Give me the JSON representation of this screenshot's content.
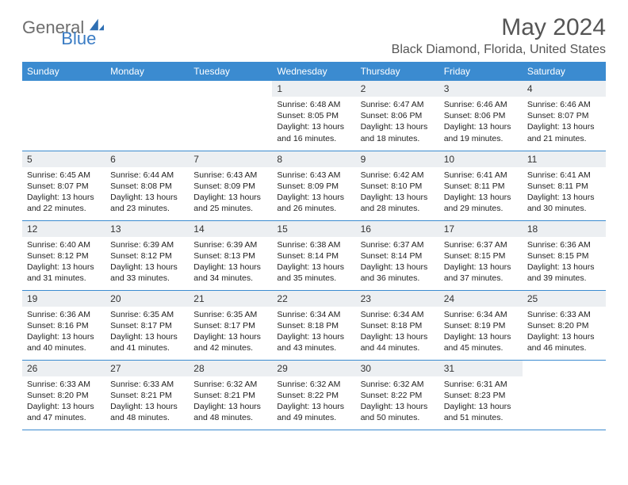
{
  "brand": {
    "general": "General",
    "blue": "Blue"
  },
  "title": "May 2024",
  "location": "Black Diamond, Florida, United States",
  "theme": {
    "header_bg": "#3b8bd0",
    "header_fg": "#ffffff",
    "daynum_bg": "#eceff2",
    "row_border": "#3b8bd0",
    "page_bg": "#ffffff",
    "title_color": "#555555",
    "logo_gray": "#6e6e6e",
    "logo_blue": "#3a7cc4"
  },
  "day_headers": [
    "Sunday",
    "Monday",
    "Tuesday",
    "Wednesday",
    "Thursday",
    "Friday",
    "Saturday"
  ],
  "weeks": [
    [
      null,
      null,
      null,
      {
        "n": "1",
        "sr": "6:48 AM",
        "ss": "8:05 PM",
        "dl": "13 hours and 16 minutes."
      },
      {
        "n": "2",
        "sr": "6:47 AM",
        "ss": "8:06 PM",
        "dl": "13 hours and 18 minutes."
      },
      {
        "n": "3",
        "sr": "6:46 AM",
        "ss": "8:06 PM",
        "dl": "13 hours and 19 minutes."
      },
      {
        "n": "4",
        "sr": "6:46 AM",
        "ss": "8:07 PM",
        "dl": "13 hours and 21 minutes."
      }
    ],
    [
      {
        "n": "5",
        "sr": "6:45 AM",
        "ss": "8:07 PM",
        "dl": "13 hours and 22 minutes."
      },
      {
        "n": "6",
        "sr": "6:44 AM",
        "ss": "8:08 PM",
        "dl": "13 hours and 23 minutes."
      },
      {
        "n": "7",
        "sr": "6:43 AM",
        "ss": "8:09 PM",
        "dl": "13 hours and 25 minutes."
      },
      {
        "n": "8",
        "sr": "6:43 AM",
        "ss": "8:09 PM",
        "dl": "13 hours and 26 minutes."
      },
      {
        "n": "9",
        "sr": "6:42 AM",
        "ss": "8:10 PM",
        "dl": "13 hours and 28 minutes."
      },
      {
        "n": "10",
        "sr": "6:41 AM",
        "ss": "8:11 PM",
        "dl": "13 hours and 29 minutes."
      },
      {
        "n": "11",
        "sr": "6:41 AM",
        "ss": "8:11 PM",
        "dl": "13 hours and 30 minutes."
      }
    ],
    [
      {
        "n": "12",
        "sr": "6:40 AM",
        "ss": "8:12 PM",
        "dl": "13 hours and 31 minutes."
      },
      {
        "n": "13",
        "sr": "6:39 AM",
        "ss": "8:12 PM",
        "dl": "13 hours and 33 minutes."
      },
      {
        "n": "14",
        "sr": "6:39 AM",
        "ss": "8:13 PM",
        "dl": "13 hours and 34 minutes."
      },
      {
        "n": "15",
        "sr": "6:38 AM",
        "ss": "8:14 PM",
        "dl": "13 hours and 35 minutes."
      },
      {
        "n": "16",
        "sr": "6:37 AM",
        "ss": "8:14 PM",
        "dl": "13 hours and 36 minutes."
      },
      {
        "n": "17",
        "sr": "6:37 AM",
        "ss": "8:15 PM",
        "dl": "13 hours and 37 minutes."
      },
      {
        "n": "18",
        "sr": "6:36 AM",
        "ss": "8:15 PM",
        "dl": "13 hours and 39 minutes."
      }
    ],
    [
      {
        "n": "19",
        "sr": "6:36 AM",
        "ss": "8:16 PM",
        "dl": "13 hours and 40 minutes."
      },
      {
        "n": "20",
        "sr": "6:35 AM",
        "ss": "8:17 PM",
        "dl": "13 hours and 41 minutes."
      },
      {
        "n": "21",
        "sr": "6:35 AM",
        "ss": "8:17 PM",
        "dl": "13 hours and 42 minutes."
      },
      {
        "n": "22",
        "sr": "6:34 AM",
        "ss": "8:18 PM",
        "dl": "13 hours and 43 minutes."
      },
      {
        "n": "23",
        "sr": "6:34 AM",
        "ss": "8:18 PM",
        "dl": "13 hours and 44 minutes."
      },
      {
        "n": "24",
        "sr": "6:34 AM",
        "ss": "8:19 PM",
        "dl": "13 hours and 45 minutes."
      },
      {
        "n": "25",
        "sr": "6:33 AM",
        "ss": "8:20 PM",
        "dl": "13 hours and 46 minutes."
      }
    ],
    [
      {
        "n": "26",
        "sr": "6:33 AM",
        "ss": "8:20 PM",
        "dl": "13 hours and 47 minutes."
      },
      {
        "n": "27",
        "sr": "6:33 AM",
        "ss": "8:21 PM",
        "dl": "13 hours and 48 minutes."
      },
      {
        "n": "28",
        "sr": "6:32 AM",
        "ss": "8:21 PM",
        "dl": "13 hours and 48 minutes."
      },
      {
        "n": "29",
        "sr": "6:32 AM",
        "ss": "8:22 PM",
        "dl": "13 hours and 49 minutes."
      },
      {
        "n": "30",
        "sr": "6:32 AM",
        "ss": "8:22 PM",
        "dl": "13 hours and 50 minutes."
      },
      {
        "n": "31",
        "sr": "6:31 AM",
        "ss": "8:23 PM",
        "dl": "13 hours and 51 minutes."
      },
      null
    ]
  ],
  "labels": {
    "sunrise": "Sunrise:",
    "sunset": "Sunset:",
    "daylight": "Daylight:"
  }
}
